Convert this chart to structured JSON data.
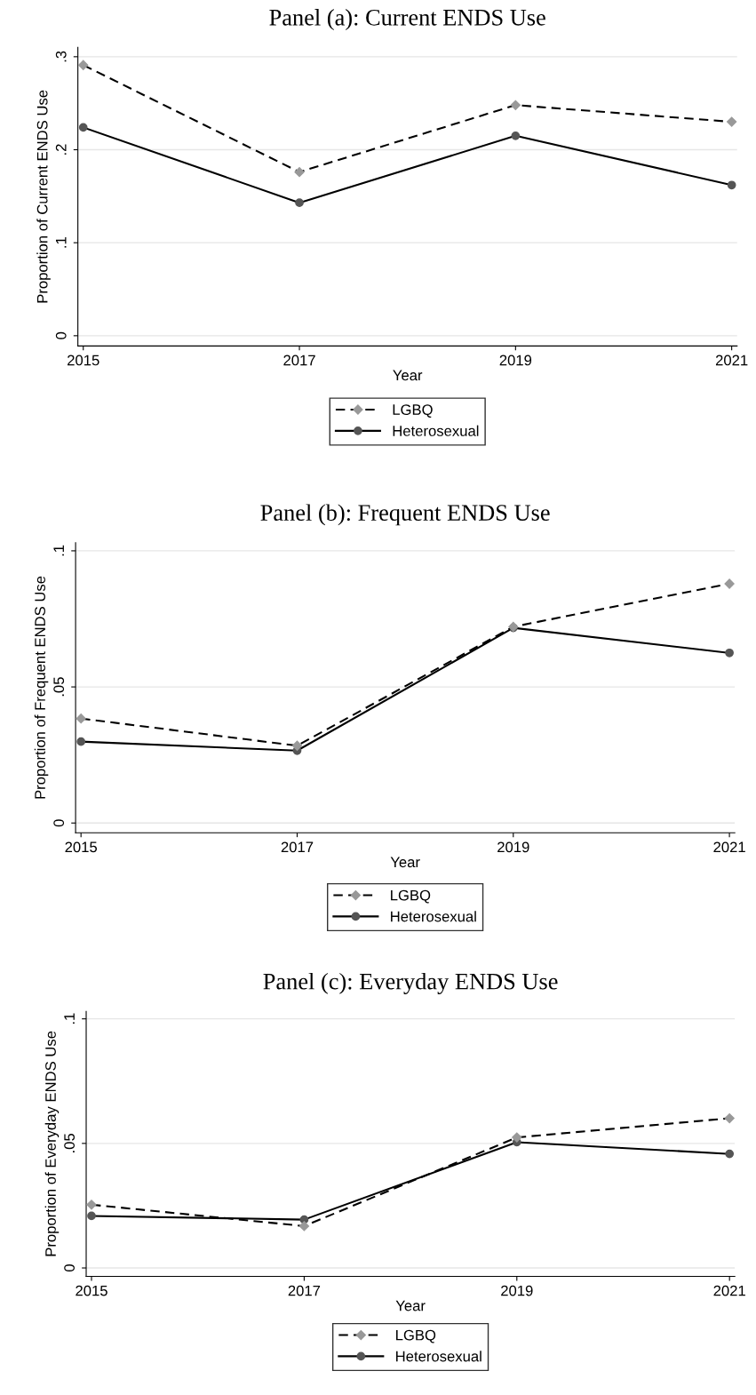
{
  "chart_data": [
    {
      "type": "line",
      "title": "Panel (a): Current ENDS Use",
      "xlabel": "Year",
      "ylabel": "Proportion of Current ENDS Use",
      "x": [
        2015,
        2017,
        2019,
        2021
      ],
      "xlim": [
        2014.95,
        2021.05
      ],
      "xticks": [
        2015,
        2017,
        2019,
        2021
      ],
      "ylim": [
        -0.011,
        0.31
      ],
      "yticks": [
        {
          "value": 0,
          "label": "0"
        },
        {
          "value": 0.1,
          "label": ".1"
        },
        {
          "value": 0.2,
          "label": ".2"
        },
        {
          "value": 0.3,
          "label": ".3"
        }
      ],
      "grid": "y",
      "legend": "bottom",
      "series": [
        {
          "name": "LGBQ",
          "color": "#999999",
          "marker": "diamond",
          "line_style": "dashed",
          "values": [
            0.291,
            0.176,
            0.248,
            0.23
          ]
        },
        {
          "name": "Heterosexual",
          "color": "#555555",
          "marker": "circle",
          "line_style": "solid",
          "values": [
            0.224,
            0.143,
            0.215,
            0.162
          ]
        }
      ]
    },
    {
      "type": "line",
      "title": "Panel (b): Frequent ENDS Use",
      "xlabel": "Year",
      "ylabel": "Proportion of Frequent ENDS Use",
      "x": [
        2015,
        2017,
        2019,
        2021
      ],
      "xlim": [
        2014.95,
        2021.05
      ],
      "xticks": [
        2015,
        2017,
        2019,
        2021
      ],
      "ylim": [
        -0.0036,
        0.103
      ],
      "yticks": [
        {
          "value": 0,
          "label": "0"
        },
        {
          "value": 0.05,
          "label": ".05"
        },
        {
          "value": 0.1,
          "label": ".1"
        }
      ],
      "grid": "y",
      "legend": "bottom",
      "series": [
        {
          "name": "LGBQ",
          "color": "#999999",
          "marker": "diamond",
          "line_style": "dashed",
          "values": [
            0.0384,
            0.0284,
            0.0721,
            0.0879
          ]
        },
        {
          "name": "Heterosexual",
          "color": "#555555",
          "marker": "circle",
          "line_style": "solid",
          "values": [
            0.0299,
            0.0266,
            0.0717,
            0.0625
          ]
        }
      ]
    },
    {
      "type": "line",
      "title": "Panel (c): Everyday ENDS Use",
      "xlabel": "Year",
      "ylabel": "Proportion of Everyday ENDS Use",
      "x": [
        2015,
        2017,
        2019,
        2021
      ],
      "xlim": [
        2014.95,
        2021.05
      ],
      "xticks": [
        2015,
        2017,
        2019,
        2021
      ],
      "ylim": [
        -0.0034,
        0.103
      ],
      "yticks": [
        {
          "value": 0,
          "label": "0"
        },
        {
          "value": 0.05,
          "label": ".05"
        },
        {
          "value": 0.1,
          "label": ".1"
        }
      ],
      "grid": "y",
      "legend": "bottom",
      "series": [
        {
          "name": "LGBQ",
          "color": "#999999",
          "marker": "diamond",
          "line_style": "dashed",
          "values": [
            0.0254,
            0.0168,
            0.0524,
            0.0601
          ]
        },
        {
          "name": "Heterosexual",
          "color": "#555555",
          "marker": "circle",
          "line_style": "solid",
          "values": [
            0.0209,
            0.0194,
            0.0505,
            0.0458
          ]
        }
      ]
    }
  ]
}
